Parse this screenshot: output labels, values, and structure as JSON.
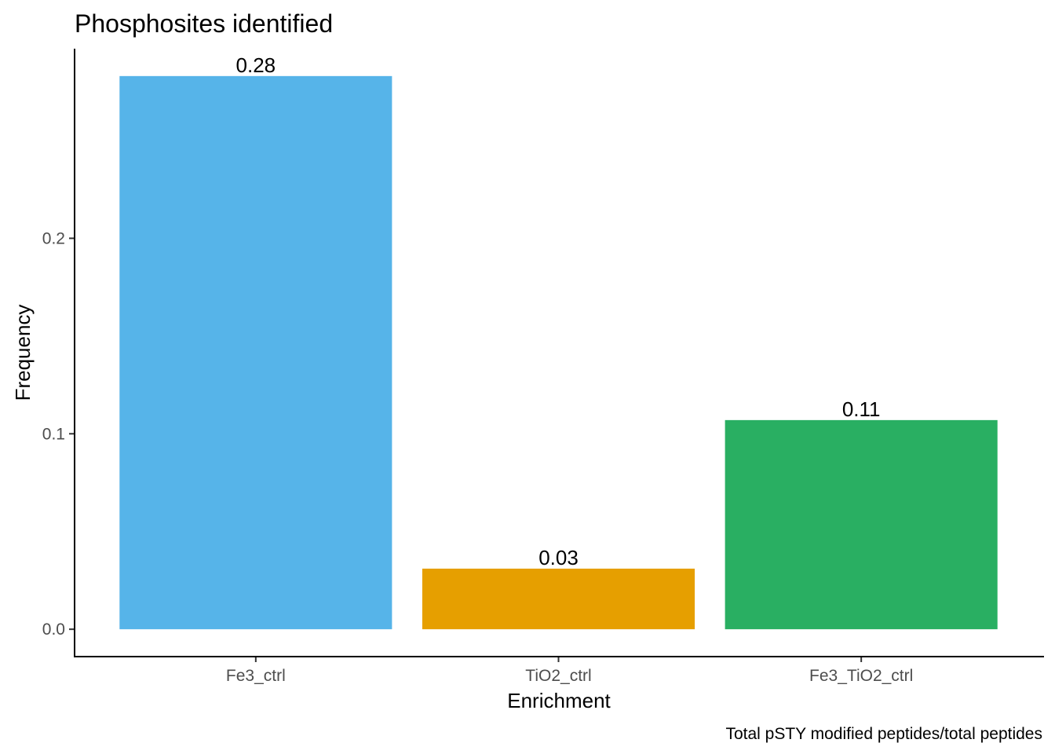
{
  "chart_data": {
    "type": "bar",
    "title": "Phosphosites identified",
    "xlabel": "Enrichment",
    "ylabel": "Frequency",
    "caption": "Total pSTY modified peptides/total peptides",
    "categories": [
      "Fe3_ctrl",
      "TiO2_ctrl",
      "Fe3_TiO2_ctrl"
    ],
    "values": [
      0.283,
      0.031,
      0.107
    ],
    "data_labels": [
      "0.28",
      "0.03",
      "0.11"
    ],
    "colors": [
      "#56B4E9",
      "#E69F00",
      "#29AF62"
    ],
    "yticks": [
      0.0,
      0.1,
      0.2
    ],
    "ytick_labels": [
      "0.0",
      "0.1",
      "0.2"
    ],
    "ylim": [
      -0.014,
      0.297
    ],
    "grid": false,
    "legend": "none"
  }
}
